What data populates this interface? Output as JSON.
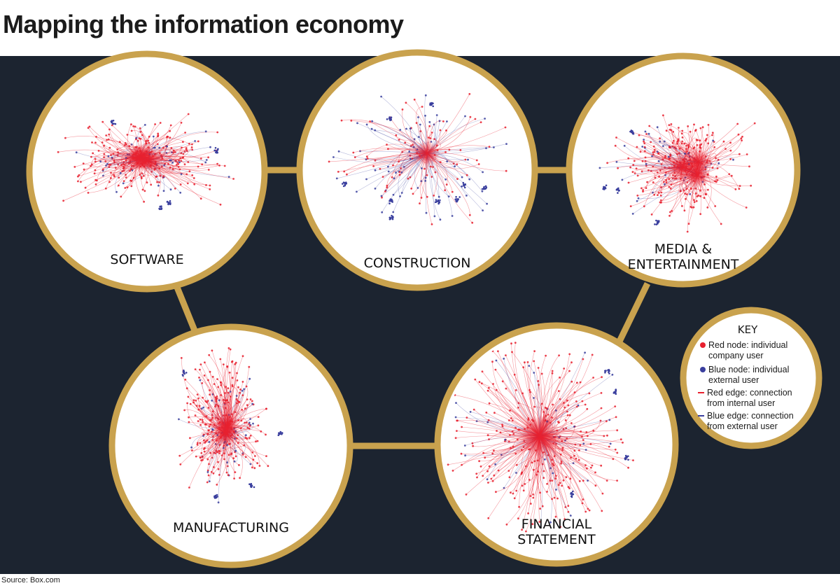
{
  "title": "Mapping the information economy",
  "source": "Source: Box.com",
  "colors": {
    "panel": "#1c2430",
    "ring": "#c9a24e",
    "internal": "#e8202e",
    "external": "#3a3f9e"
  },
  "networks": [
    {
      "id": "software",
      "label_lines": [
        "SOFTWARE"
      ]
    },
    {
      "id": "construction",
      "label_lines": [
        "CONSTRUCTION"
      ]
    },
    {
      "id": "media",
      "label_lines": [
        "MEDIA &",
        "ENTERTAINMENT"
      ]
    },
    {
      "id": "manufacturing",
      "label_lines": [
        "MANUFACTURING"
      ]
    },
    {
      "id": "financial",
      "label_lines": [
        "FINANCIAL",
        "STATEMENT"
      ]
    }
  ],
  "key": {
    "heading": "KEY",
    "items": [
      {
        "symbol": "red-node",
        "lines": [
          "Red node: individual",
          "company user"
        ]
      },
      {
        "symbol": "blue-node",
        "lines": [
          "Blue node: individual",
          "external user"
        ]
      },
      {
        "symbol": "red-edge",
        "lines": [
          "Red edge: connection",
          "from internal user"
        ]
      },
      {
        "symbol": "blue-edge",
        "lines": [
          "Blue edge: connection",
          "from external user"
        ]
      }
    ]
  }
}
